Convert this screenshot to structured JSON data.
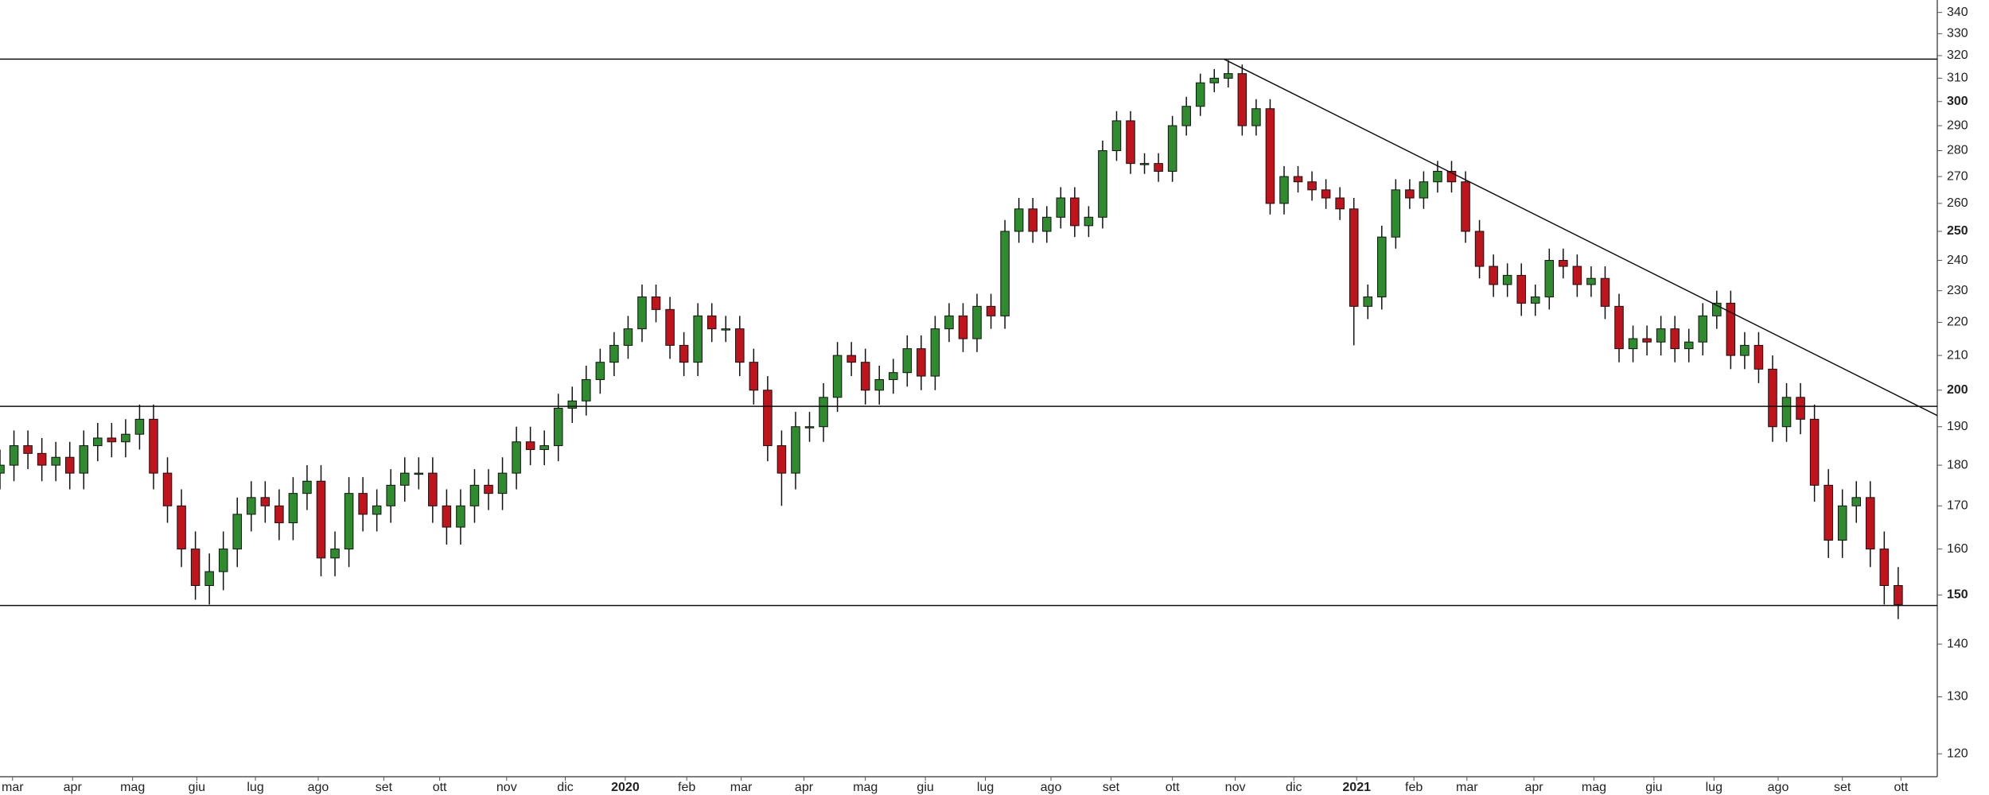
{
  "chart_data": {
    "type": "candlestick",
    "log_scale": true,
    "up_color": "#2e8b2e",
    "down_color": "#c0141c",
    "open": [
      178,
      180,
      185,
      183,
      180,
      182,
      178,
      185,
      187,
      186,
      188,
      192,
      178,
      170,
      160,
      152,
      155,
      160,
      168,
      172,
      170,
      166,
      173,
      176,
      158,
      160,
      173,
      168,
      170,
      175,
      178,
      178,
      170,
      165,
      170,
      175,
      173,
      178,
      186,
      184,
      185,
      195,
      197,
      203,
      208,
      213,
      218,
      228,
      224,
      213,
      208,
      222,
      218,
      218,
      208,
      200,
      185,
      178,
      190,
      190,
      198,
      210,
      208,
      200,
      203,
      205,
      212,
      204,
      218,
      222,
      215,
      225,
      222,
      250,
      258,
      250,
      255,
      262,
      252,
      255,
      280,
      292,
      275,
      275,
      272,
      290,
      298,
      308,
      310,
      312,
      290,
      297,
      260,
      270,
      268,
      265,
      262,
      258,
      225,
      228,
      248,
      265,
      262,
      268,
      272,
      268,
      250,
      238,
      232,
      235,
      226,
      228,
      240,
      238,
      232,
      234,
      225,
      212,
      215,
      214,
      218,
      212,
      214,
      222,
      226,
      210,
      213,
      206,
      190,
      198,
      192,
      175,
      162,
      170,
      172,
      160,
      152
    ],
    "high": [
      184,
      189,
      189,
      187,
      186,
      186,
      189,
      191,
      191,
      192,
      196,
      196,
      182,
      174,
      164,
      159,
      164,
      172,
      176,
      176,
      174,
      177,
      180,
      180,
      164,
      177,
      177,
      174,
      179,
      182,
      182,
      182,
      174,
      174,
      179,
      179,
      182,
      190,
      190,
      189,
      199,
      201,
      207,
      212,
      217,
      222,
      232,
      232,
      228,
      217,
      226,
      226,
      222,
      222,
      212,
      204,
      189,
      194,
      194,
      202,
      214,
      214,
      212,
      207,
      209,
      216,
      216,
      222,
      226,
      226,
      229,
      229,
      254,
      262,
      262,
      259,
      266,
      266,
      259,
      284,
      296,
      296,
      279,
      279,
      294,
      302,
      312,
      314,
      318,
      316,
      301,
      301,
      274,
      274,
      272,
      269,
      266,
      262,
      232,
      252,
      269,
      269,
      272,
      276,
      276,
      272,
      254,
      242,
      239,
      239,
      232,
      244,
      244,
      242,
      238,
      238,
      229,
      219,
      219,
      222,
      222,
      218,
      226,
      230,
      230,
      217,
      217,
      210,
      202,
      202,
      196,
      179,
      174,
      176,
      176,
      164,
      156
    ],
    "low": [
      174,
      176,
      179,
      176,
      176,
      174,
      174,
      181,
      182,
      182,
      184,
      174,
      166,
      156,
      149,
      148,
      151,
      156,
      164,
      166,
      162,
      162,
      169,
      154,
      154,
      156,
      164,
      164,
      166,
      171,
      174,
      166,
      161,
      161,
      166,
      169,
      169,
      174,
      180,
      180,
      181,
      191,
      193,
      199,
      204,
      209,
      214,
      220,
      209,
      204,
      204,
      214,
      214,
      204,
      196,
      181,
      170,
      174,
      186,
      186,
      194,
      204,
      196,
      196,
      199,
      201,
      200,
      200,
      214,
      211,
      211,
      218,
      218,
      246,
      246,
      246,
      251,
      248,
      248,
      251,
      276,
      271,
      271,
      268,
      268,
      286,
      294,
      304,
      306,
      286,
      286,
      256,
      256,
      264,
      261,
      258,
      254,
      213,
      221,
      224,
      244,
      258,
      258,
      264,
      264,
      246,
      234,
      228,
      228,
      222,
      222,
      224,
      234,
      228,
      228,
      221,
      208,
      208,
      210,
      210,
      208,
      208,
      210,
      218,
      206,
      206,
      202,
      186,
      186,
      188,
      171,
      158,
      158,
      166,
      156,
      148,
      145
    ],
    "close": [
      180,
      185,
      183,
      180,
      182,
      178,
      185,
      187,
      186,
      188,
      192,
      178,
      170,
      160,
      152,
      155,
      160,
      168,
      172,
      170,
      166,
      173,
      176,
      158,
      160,
      173,
      168,
      170,
      175,
      178,
      178,
      170,
      165,
      170,
      175,
      173,
      178,
      186,
      184,
      185,
      195,
      197,
      203,
      208,
      213,
      218,
      228,
      224,
      213,
      208,
      222,
      218,
      218,
      208,
      200,
      185,
      178,
      190,
      190,
      198,
      210,
      208,
      200,
      203,
      205,
      212,
      204,
      218,
      222,
      215,
      225,
      222,
      250,
      258,
      250,
      255,
      262,
      252,
      255,
      280,
      292,
      275,
      275,
      272,
      290,
      298,
      308,
      310,
      312,
      290,
      297,
      260,
      270,
      268,
      265,
      262,
      258,
      225,
      228,
      248,
      265,
      262,
      268,
      272,
      268,
      250,
      238,
      232,
      235,
      226,
      228,
      240,
      238,
      232,
      234,
      225,
      212,
      215,
      214,
      218,
      212,
      214,
      222,
      226,
      210,
      213,
      206,
      190,
      198,
      192,
      175,
      162,
      170,
      172,
      160,
      152,
      148
    ],
    "xlim": [
      0,
      138.8
    ],
    "xticks": [
      {
        "value": 0.9,
        "label": "mar"
      },
      {
        "value": 5.2,
        "label": "apr"
      },
      {
        "value": 9.5,
        "label": "mag"
      },
      {
        "value": 14.1,
        "label": "giu"
      },
      {
        "value": 18.3,
        "label": "lug"
      },
      {
        "value": 22.8,
        "label": "ago"
      },
      {
        "value": 27.5,
        "label": "set"
      },
      {
        "value": 31.5,
        "label": "ott"
      },
      {
        "value": 36.3,
        "label": "nov"
      },
      {
        "value": 40.5,
        "label": "dic"
      },
      {
        "value": 44.8,
        "label": "2020"
      },
      {
        "value": 49.2,
        "label": "feb"
      },
      {
        "value": 53.1,
        "label": "mar"
      },
      {
        "value": 57.6,
        "label": "apr"
      },
      {
        "value": 62,
        "label": "mag"
      },
      {
        "value": 66.3,
        "label": "giu"
      },
      {
        "value": 70.6,
        "label": "lug"
      },
      {
        "value": 75.3,
        "label": "ago"
      },
      {
        "value": 79.6,
        "label": "set"
      },
      {
        "value": 84,
        "label": "ott"
      },
      {
        "value": 88.5,
        "label": "nov"
      },
      {
        "value": 92.7,
        "label": "dic"
      },
      {
        "value": 97.2,
        "label": "2021"
      },
      {
        "value": 101.3,
        "label": "feb"
      },
      {
        "value": 105.1,
        "label": "mar"
      },
      {
        "value": 109.9,
        "label": "apr"
      },
      {
        "value": 114.2,
        "label": "mag"
      },
      {
        "value": 118.5,
        "label": "giu"
      },
      {
        "value": 122.8,
        "label": "lug"
      },
      {
        "value": 127.4,
        "label": "ago"
      },
      {
        "value": 132,
        "label": "set"
      },
      {
        "value": 136.2,
        "label": "ott"
      }
    ],
    "ylim": [
      116.2,
      346
    ],
    "yticks": [
      120,
      130,
      140,
      150,
      160,
      170,
      180,
      190,
      200,
      210,
      220,
      230,
      240,
      250,
      260,
      270,
      280,
      290,
      300,
      310,
      320,
      330,
      340
    ],
    "hlines": [
      318.4,
      195.5,
      147.8
    ],
    "trendline": {
      "x": [
        87.7,
        138.8
      ],
      "y": [
        318.4,
        193
      ]
    }
  }
}
